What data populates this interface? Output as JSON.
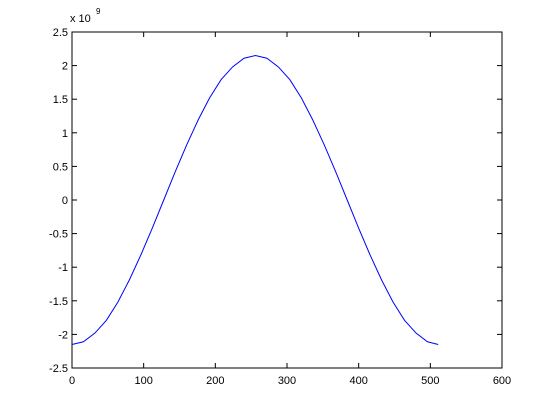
{
  "chart_data": {
    "type": "line",
    "y_multiplier": "x 10",
    "y_exponent": "9",
    "x": [
      0,
      16,
      32,
      48,
      64,
      80,
      96,
      112,
      128,
      144,
      160,
      176,
      192,
      208,
      224,
      240,
      256,
      272,
      288,
      304,
      320,
      336,
      352,
      368,
      384,
      400,
      416,
      432,
      448,
      464,
      480,
      496,
      511
    ],
    "series": [
      {
        "color": "#0000ff",
        "values": [
          -2.15,
          -2.11,
          -1.98,
          -1.79,
          -1.52,
          -1.19,
          -0.82,
          -0.42,
          0,
          0.42,
          0.82,
          1.19,
          1.52,
          1.79,
          1.98,
          2.11,
          2.15,
          2.11,
          1.98,
          1.79,
          1.52,
          1.19,
          0.82,
          0.42,
          0,
          -0.42,
          -0.82,
          -1.19,
          -1.52,
          -1.79,
          -1.98,
          -2.11,
          -2.15
        ]
      }
    ],
    "xlim": [
      0,
      600
    ],
    "xticks": [
      0,
      100,
      200,
      300,
      400,
      500,
      600
    ],
    "ylim": [
      -2.5,
      2.5
    ],
    "yticks": [
      -2.5,
      -2,
      -1.5,
      -1,
      -0.5,
      0,
      0.5,
      1,
      1.5,
      2,
      2.5
    ]
  }
}
